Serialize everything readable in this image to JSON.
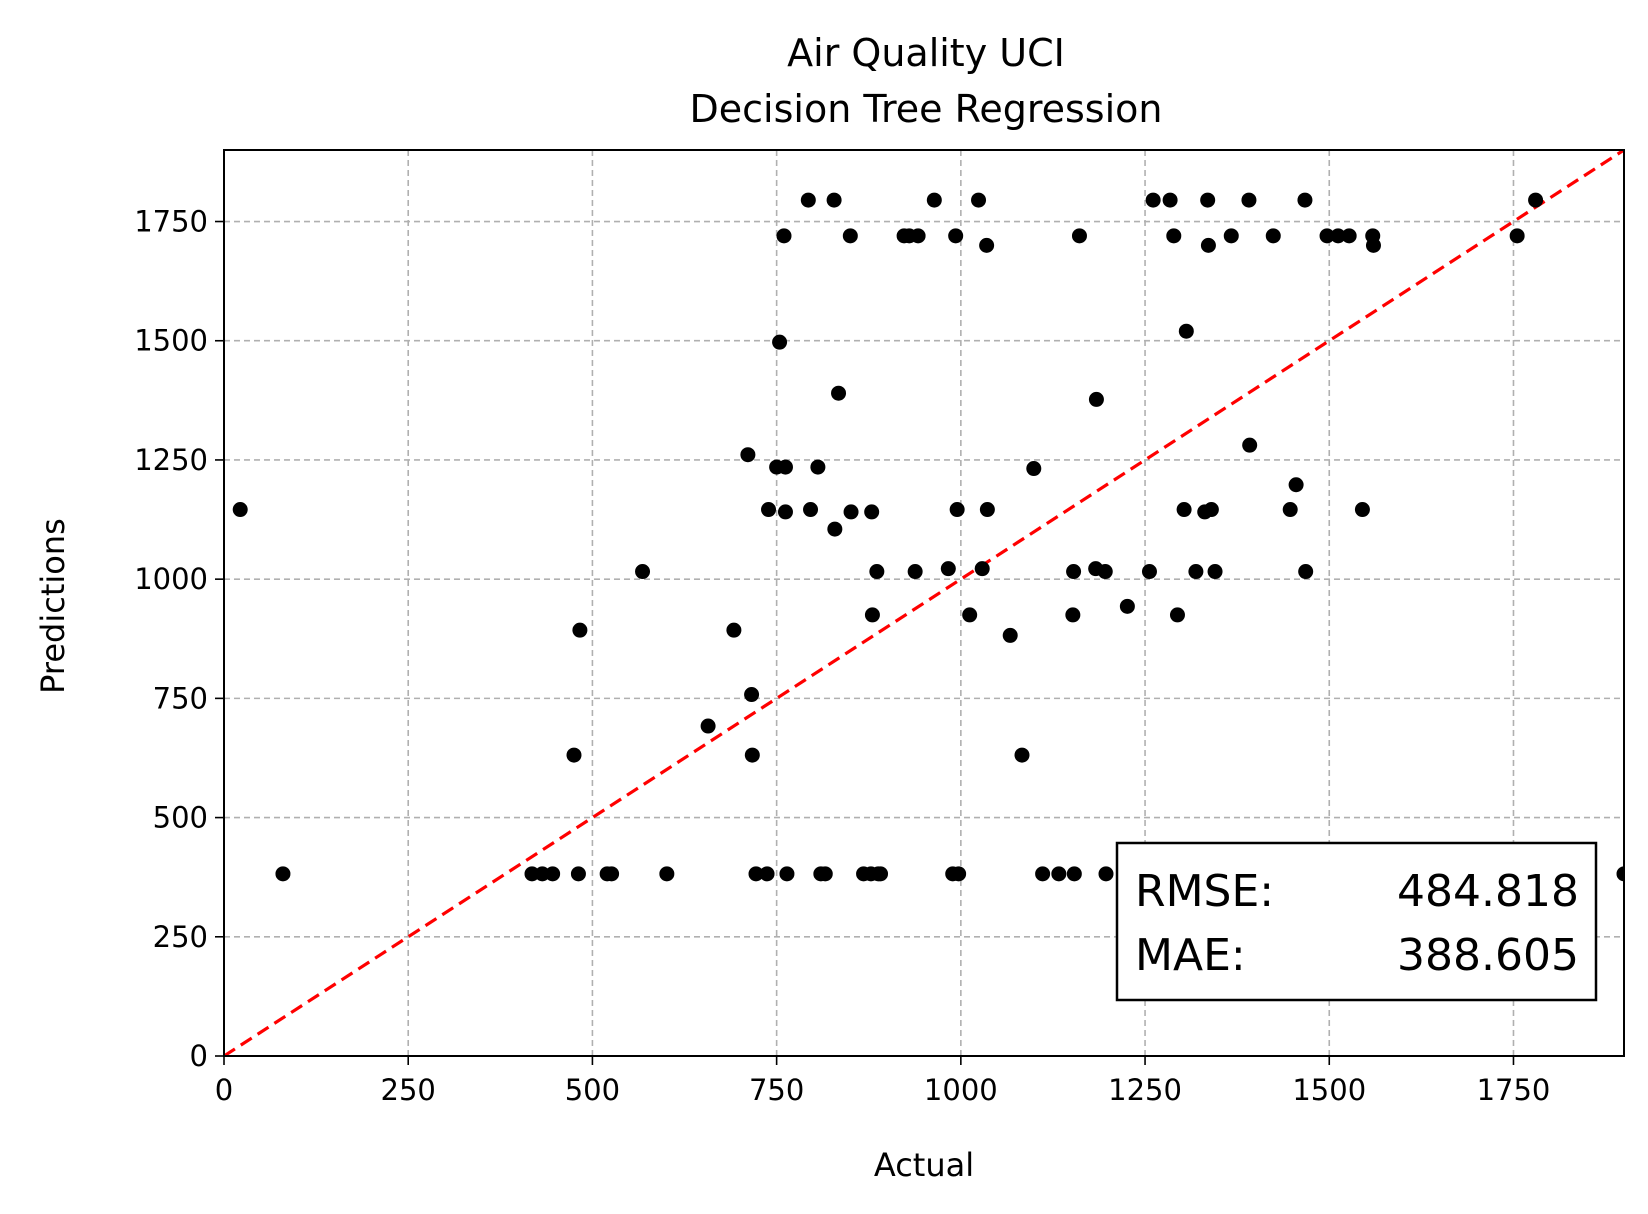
{
  "chart_data": {
    "type": "scatter",
    "title": "Air Quality UCI",
    "subtitle": "Decision Tree Regression",
    "xlabel": "Actual",
    "ylabel": "Predictions",
    "xlim": [
      0,
      1900
    ],
    "ylim": [
      0,
      1900
    ],
    "xticks": [
      0,
      250,
      500,
      750,
      1000,
      1250,
      1500,
      1750
    ],
    "yticks": [
      0,
      250,
      500,
      750,
      1000,
      1250,
      1500,
      1750
    ],
    "grid": true,
    "point_color": "#000000",
    "reference_line": {
      "from": [
        0,
        0
      ],
      "to": [
        1900,
        1900
      ],
      "color": "#ff0000",
      "style": "dashed"
    },
    "annotation": {
      "rmse_label": "RMSE:",
      "rmse_value": "484.818",
      "mae_label": "MAE:",
      "mae_value": "388.605",
      "placement": "bottom-right"
    },
    "points": [
      [
        22,
        1146
      ],
      [
        80,
        382
      ],
      [
        418,
        382
      ],
      [
        432,
        382
      ],
      [
        446,
        382
      ],
      [
        475,
        631
      ],
      [
        481,
        382
      ],
      [
        483,
        893
      ],
      [
        520,
        382
      ],
      [
        526,
        382
      ],
      [
        568,
        1016
      ],
      [
        601,
        382
      ],
      [
        657,
        692
      ],
      [
        692,
        893
      ],
      [
        711,
        1261
      ],
      [
        716,
        758
      ],
      [
        717,
        631
      ],
      [
        722,
        382
      ],
      [
        737,
        382
      ],
      [
        739,
        1146
      ],
      [
        750,
        1235
      ],
      [
        754,
        1497
      ],
      [
        760,
        1720
      ],
      [
        762,
        1235
      ],
      [
        762,
        1141
      ],
      [
        764,
        382
      ],
      [
        793,
        1795
      ],
      [
        796,
        1146
      ],
      [
        806,
        1235
      ],
      [
        810,
        382
      ],
      [
        816,
        382
      ],
      [
        828,
        1795
      ],
      [
        829,
        1105
      ],
      [
        834,
        1390
      ],
      [
        850,
        1720
      ],
      [
        851,
        1141
      ],
      [
        868,
        382
      ],
      [
        878,
        382
      ],
      [
        879,
        1141
      ],
      [
        880,
        925
      ],
      [
        886,
        1016
      ],
      [
        888,
        382
      ],
      [
        891,
        382
      ],
      [
        923,
        1720
      ],
      [
        930,
        1720
      ],
      [
        938,
        1016
      ],
      [
        942,
        1720
      ],
      [
        964,
        1795
      ],
      [
        983,
        1022
      ],
      [
        989,
        382
      ],
      [
        993,
        1720
      ],
      [
        995,
        1146
      ],
      [
        997,
        382
      ],
      [
        1012,
        925
      ],
      [
        1024,
        1795
      ],
      [
        1029,
        1022
      ],
      [
        1035,
        1700
      ],
      [
        1036,
        1146
      ],
      [
        1067,
        882
      ],
      [
        1083,
        631
      ],
      [
        1099,
        1232
      ],
      [
        1111,
        382
      ],
      [
        1133,
        382
      ],
      [
        1154,
        382
      ],
      [
        1152,
        925
      ],
      [
        1153,
        1016
      ],
      [
        1161,
        1720
      ],
      [
        1183,
        1022
      ],
      [
        1184,
        1377
      ],
      [
        1196,
        1016
      ],
      [
        1197,
        382
      ],
      [
        1226,
        943
      ],
      [
        1256,
        1016
      ],
      [
        1261,
        1795
      ],
      [
        1284,
        1795
      ],
      [
        1289,
        1720
      ],
      [
        1294,
        925
      ],
      [
        1303,
        1146
      ],
      [
        1306,
        1520
      ],
      [
        1319,
        1016
      ],
      [
        1331,
        1141
      ],
      [
        1335,
        1795
      ],
      [
        1336,
        1700
      ],
      [
        1340,
        1146
      ],
      [
        1345,
        1016
      ],
      [
        1367,
        1720
      ],
      [
        1391,
        1795
      ],
      [
        1392,
        1281
      ],
      [
        1424,
        1720
      ],
      [
        1447,
        1146
      ],
      [
        1455,
        1198
      ],
      [
        1467,
        1795
      ],
      [
        1468,
        1016
      ],
      [
        1497,
        1720
      ],
      [
        1512,
        1720
      ],
      [
        1527,
        1720
      ],
      [
        1545,
        1146
      ],
      [
        1559,
        1720
      ],
      [
        1560,
        1700
      ],
      [
        1755,
        1720
      ],
      [
        1780,
        1795
      ],
      [
        1900,
        382
      ]
    ]
  }
}
